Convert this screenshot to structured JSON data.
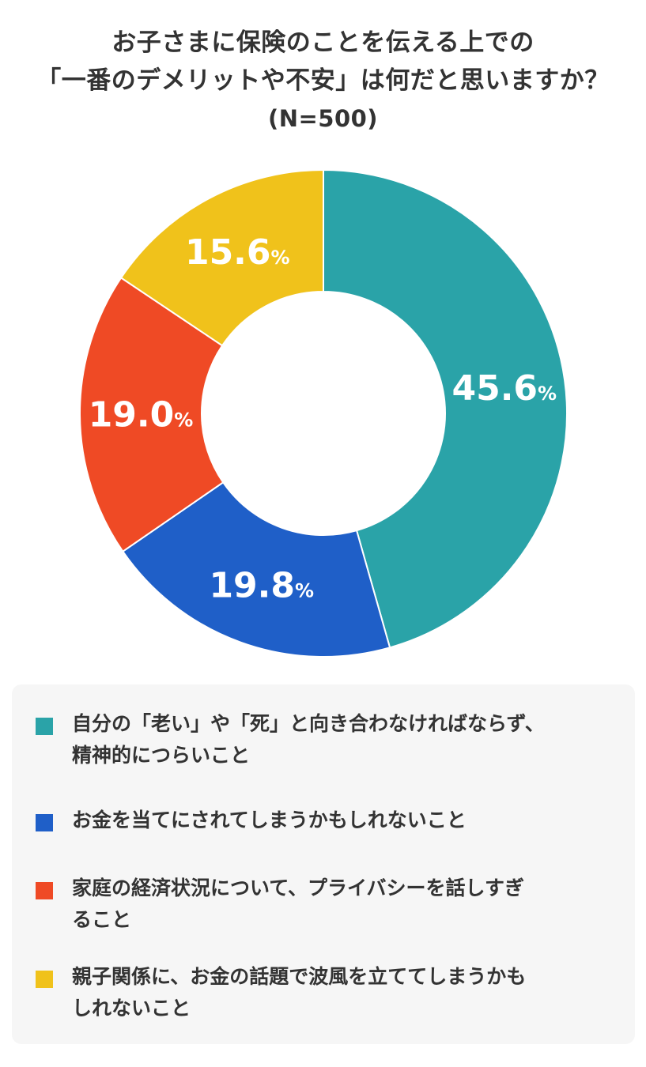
{
  "title": {
    "line1": "お子さまに保険のことを伝える上での",
    "line2": "「一番のデメリットや不安」は何だと思いますか？",
    "sample": "(N=500)"
  },
  "chart_data": {
    "type": "pie",
    "donut": true,
    "unit": "%",
    "slices": [
      {
        "label": "自分の「老い」や「死」と向き合わなければならず、精神的につらいこと",
        "value": 45.6,
        "display": "45.6",
        "color": "#2aa3a8"
      },
      {
        "label": "お金を当てにされてしまうかもしれないこと",
        "value": 19.8,
        "display": "19.8",
        "color": "#1f5fc8"
      },
      {
        "label": "家庭の経済状況について、プライバシーを話しすぎること",
        "value": 19.0,
        "display": "19.0",
        "color": "#ef4a25"
      },
      {
        "label": "親子関係に、お金の話題で波風を立ててしまうかもしれないこと",
        "value": 15.6,
        "display": "15.6",
        "color": "#f0c21b"
      }
    ]
  },
  "legend": {
    "items": [
      {
        "line1": "自分の「老い」や「死」と向き合わなければならず、",
        "line2": "精神的につらいこと",
        "color": "#2aa3a8"
      },
      {
        "line1": "お金を当てにされてしまうかもしれないこと",
        "line2": "",
        "color": "#1f5fc8"
      },
      {
        "line1": "家庭の経済状況について、プライバシーを話しすぎ",
        "line2": "ること",
        "color": "#ef4a25"
      },
      {
        "line1": "親子関係に、お金の話題で波風を立ててしまうかも",
        "line2": "しれないこと",
        "color": "#f0c21b"
      }
    ]
  }
}
